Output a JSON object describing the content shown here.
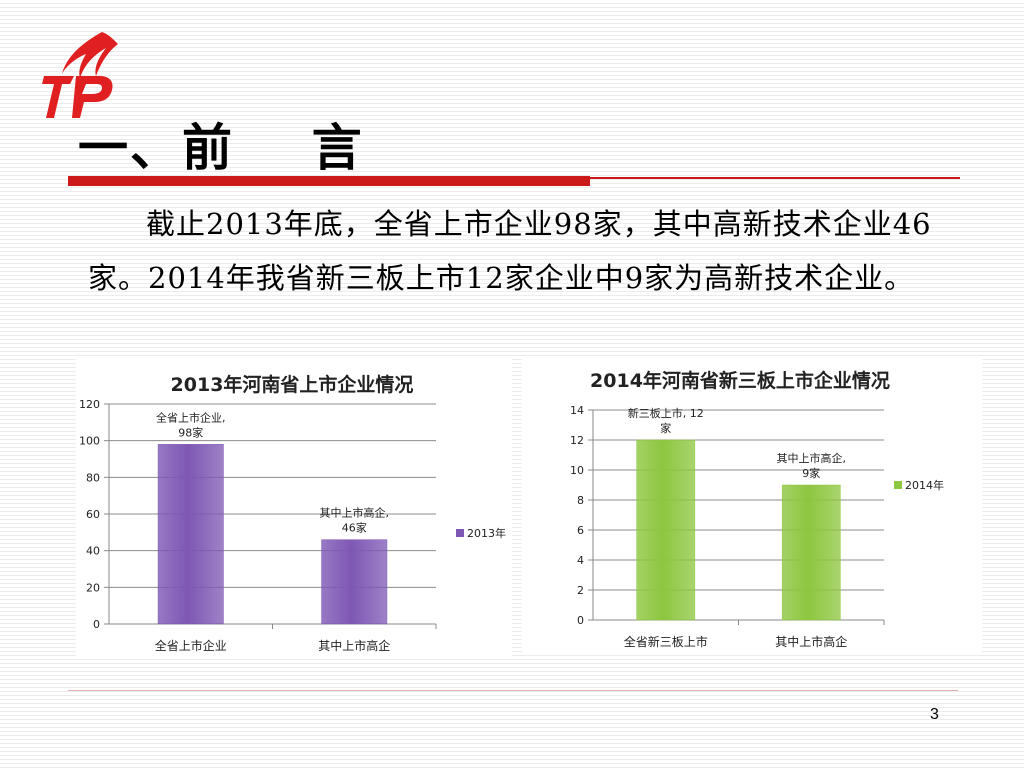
{
  "slide": {
    "title": "一、前    言",
    "paragraph": "截止2013年底，全省上市企业98家，其中高新技术企业46家。2014年我省新三板上市12家企业中9家为高新技术企业。",
    "page_number": "3",
    "accent_color": "#cc1a1a"
  },
  "chart_data": [
    {
      "type": "bar",
      "title": "2013年河南省上市企业情况",
      "categories": [
        "全省上市企业",
        "其中上市高企"
      ],
      "series": [
        {
          "name": "2013年",
          "values": [
            98,
            46
          ],
          "color": "#7e57b4"
        }
      ],
      "data_labels": [
        [
          "全省上市企业,",
          "98家"
        ],
        [
          "其中上市高企,",
          "46家"
        ]
      ],
      "ylim": [
        0,
        120
      ],
      "yticks": [
        0,
        20,
        40,
        60,
        80,
        100,
        120
      ],
      "grid": true,
      "legend": "right"
    },
    {
      "type": "bar",
      "title": "2014年河南省新三板上市企业情况",
      "categories": [
        "全省新三板上市",
        "其中上市高企"
      ],
      "series": [
        {
          "name": "2014年",
          "values": [
            12,
            9
          ],
          "color": "#8dc63f"
        }
      ],
      "data_labels": [
        [
          "新三板上市, 12",
          "家"
        ],
        [
          "其中上市高企,",
          "9家"
        ]
      ],
      "ylim": [
        0,
        14
      ],
      "yticks": [
        0,
        2,
        4,
        6,
        8,
        10,
        12,
        14
      ],
      "grid": true,
      "legend": "right"
    }
  ]
}
